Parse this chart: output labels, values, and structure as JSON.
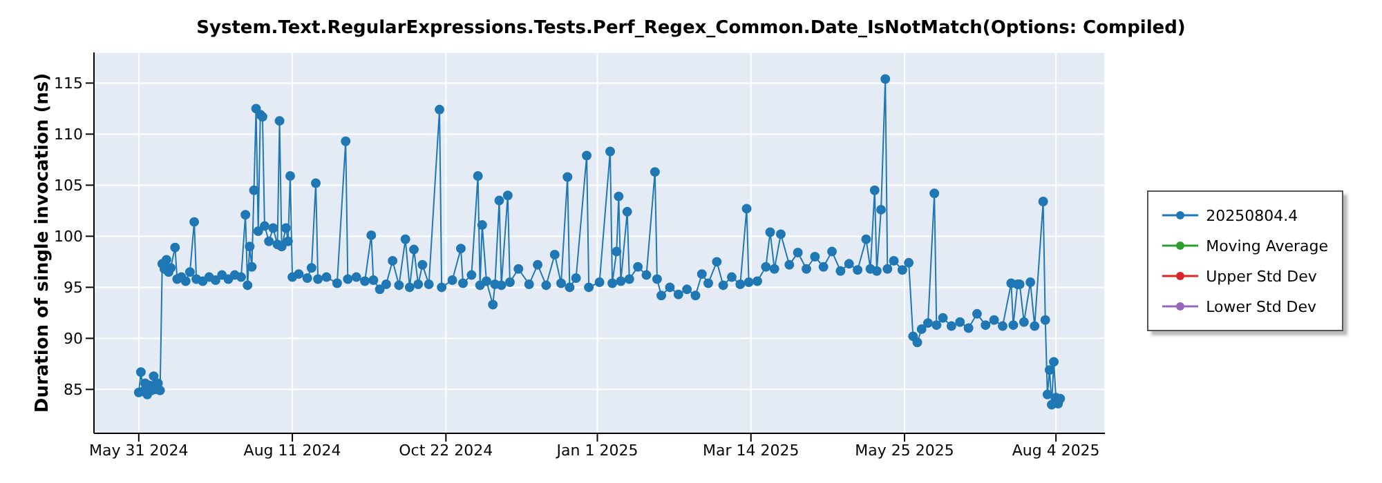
{
  "chart_data": {
    "type": "line",
    "title": "System.Text.RegularExpressions.Tests.Perf_Regex_Common.Date_IsNotMatch(Options: Compiled)",
    "ylabel": "Duration of single invocation (ns)",
    "xlim": [
      "2024-05-10",
      "2025-08-27"
    ],
    "ylim": [
      80.7,
      118
    ],
    "yticks": [
      85,
      90,
      95,
      100,
      105,
      110,
      115
    ],
    "xticks": [
      {
        "value": "2024-05-31",
        "label": "May 31 2024"
      },
      {
        "value": "2024-08-11",
        "label": "Aug 11 2024"
      },
      {
        "value": "2024-10-22",
        "label": "Oct 22 2024"
      },
      {
        "value": "2025-01-01",
        "label": "Jan 1 2025"
      },
      {
        "value": "2025-03-14",
        "label": "Mar 14 2025"
      },
      {
        "value": "2025-05-25",
        "label": "May 25 2025"
      },
      {
        "value": "2025-08-04",
        "label": "Aug 4 2025"
      }
    ],
    "grid": true,
    "legend": "right",
    "marker": "circle",
    "line_style": "solid",
    "series": [
      {
        "name": "20250804.4",
        "color": "#1f77b4",
        "x": [
          "2024-05-31",
          "2024-06-01",
          "2024-06-02",
          "2024-06-03",
          "2024-06-04",
          "2024-06-05",
          "2024-06-06",
          "2024-06-07",
          "2024-06-08",
          "2024-06-09",
          "2024-06-10",
          "2024-06-11",
          "2024-06-12",
          "2024-06-13",
          "2024-06-14",
          "2024-06-15",
          "2024-06-17",
          "2024-06-18",
          "2024-06-20",
          "2024-06-22",
          "2024-06-24",
          "2024-06-26",
          "2024-06-27",
          "2024-06-30",
          "2024-07-03",
          "2024-07-06",
          "2024-07-09",
          "2024-07-12",
          "2024-07-15",
          "2024-07-18",
          "2024-07-20",
          "2024-07-21",
          "2024-07-22",
          "2024-07-23",
          "2024-07-24",
          "2024-07-25",
          "2024-07-26",
          "2024-07-27",
          "2024-07-28",
          "2024-07-29",
          "2024-07-31",
          "2024-08-02",
          "2024-08-04",
          "2024-08-05",
          "2024-08-06",
          "2024-08-08",
          "2024-08-09",
          "2024-08-10",
          "2024-08-11",
          "2024-08-14",
          "2024-08-18",
          "2024-08-20",
          "2024-08-22",
          "2024-08-23",
          "2024-08-27",
          "2024-09-01",
          "2024-09-05",
          "2024-09-06",
          "2024-09-10",
          "2024-09-14",
          "2024-09-17",
          "2024-09-18",
          "2024-09-21",
          "2024-09-24",
          "2024-09-27",
          "2024-09-30",
          "2024-10-03",
          "2024-10-05",
          "2024-10-07",
          "2024-10-09",
          "2024-10-11",
          "2024-10-14",
          "2024-10-19",
          "2024-10-20",
          "2024-10-25",
          "2024-10-29",
          "2024-10-30",
          "2024-11-03",
          "2024-11-06",
          "2024-11-07",
          "2024-11-08",
          "2024-11-10",
          "2024-11-13",
          "2024-11-14",
          "2024-11-16",
          "2024-11-17",
          "2024-11-20",
          "2024-11-21",
          "2024-11-25",
          "2024-11-30",
          "2024-12-04",
          "2024-12-08",
          "2024-12-12",
          "2024-12-15",
          "2024-12-18",
          "2024-12-19",
          "2024-12-22",
          "2024-12-27",
          "2024-12-28",
          "2025-01-02",
          "2025-01-07",
          "2025-01-08",
          "2025-01-10",
          "2025-01-11",
          "2025-01-12",
          "2025-01-15",
          "2025-01-16",
          "2025-01-20",
          "2025-01-24",
          "2025-01-28",
          "2025-01-29",
          "2025-01-31",
          "2025-02-04",
          "2025-02-08",
          "2025-02-12",
          "2025-02-16",
          "2025-02-19",
          "2025-02-22",
          "2025-02-26",
          "2025-03-01",
          "2025-03-05",
          "2025-03-09",
          "2025-03-12",
          "2025-03-13",
          "2025-03-17",
          "2025-03-21",
          "2025-03-23",
          "2025-03-25",
          "2025-03-28",
          "2025-04-01",
          "2025-04-05",
          "2025-04-09",
          "2025-04-13",
          "2025-04-17",
          "2025-04-21",
          "2025-04-25",
          "2025-04-29",
          "2025-05-03",
          "2025-05-07",
          "2025-05-09",
          "2025-05-11",
          "2025-05-12",
          "2025-05-14",
          "2025-05-16",
          "2025-05-17",
          "2025-05-20",
          "2025-05-24",
          "2025-05-27",
          "2025-05-29",
          "2025-05-31",
          "2025-06-02",
          "2025-06-05",
          "2025-06-08",
          "2025-06-09",
          "2025-06-12",
          "2025-06-16",
          "2025-06-20",
          "2025-06-24",
          "2025-06-28",
          "2025-07-02",
          "2025-07-06",
          "2025-07-10",
          "2025-07-14",
          "2025-07-15",
          "2025-07-17",
          "2025-07-18",
          "2025-07-20",
          "2025-07-23",
          "2025-07-25",
          "2025-07-29",
          "2025-07-30",
          "2025-07-31",
          "2025-08-01",
          "2025-08-02",
          "2025-08-03",
          "2025-08-04",
          "2025-08-05",
          "2025-08-06"
        ],
        "values": [
          84.7,
          86.7,
          84.8,
          85.6,
          84.5,
          85.4,
          84.9,
          86.3,
          85.0,
          85.6,
          84.9,
          97.3,
          96.8,
          97.7,
          96.5,
          96.9,
          98.9,
          95.8,
          96.0,
          95.6,
          96.5,
          101.4,
          95.8,
          95.6,
          96.0,
          95.7,
          96.2,
          95.8,
          96.2,
          96.0,
          102.1,
          95.2,
          99.0,
          97.0,
          104.5,
          112.5,
          100.5,
          111.9,
          111.7,
          101.0,
          99.5,
          100.8,
          99.2,
          111.3,
          99.0,
          100.8,
          99.5,
          105.9,
          96.0,
          96.3,
          95.9,
          96.9,
          105.2,
          95.8,
          96.0,
          95.4,
          109.3,
          95.8,
          96.0,
          95.6,
          100.1,
          95.7,
          94.8,
          95.3,
          97.6,
          95.2,
          99.7,
          95.0,
          98.7,
          95.3,
          97.2,
          95.3,
          112.4,
          95.0,
          95.7,
          98.8,
          95.4,
          96.2,
          105.9,
          95.2,
          101.1,
          95.6,
          93.3,
          95.3,
          103.5,
          95.2,
          104.0,
          95.5,
          96.8,
          95.3,
          97.2,
          95.2,
          98.2,
          95.4,
          105.8,
          95.0,
          95.9,
          107.9,
          95.0,
          95.5,
          108.3,
          95.4,
          98.5,
          103.9,
          95.6,
          102.4,
          95.8,
          97.0,
          96.2,
          106.3,
          95.8,
          94.2,
          95.0,
          94.3,
          94.8,
          94.2,
          96.3,
          95.4,
          97.5,
          95.2,
          96.0,
          95.3,
          102.7,
          95.5,
          95.6,
          97.0,
          100.4,
          96.8,
          100.2,
          97.2,
          98.4,
          96.8,
          98.0,
          97.0,
          98.5,
          96.6,
          97.3,
          96.7,
          99.7,
          96.8,
          104.5,
          96.6,
          102.6,
          115.4,
          96.8,
          97.6,
          96.7,
          97.4,
          90.2,
          89.6,
          90.9,
          91.5,
          104.2,
          91.3,
          92.0,
          91.2,
          91.6,
          91.0,
          92.4,
          91.3,
          91.8,
          91.2,
          95.4,
          91.3,
          95.3,
          95.3,
          91.6,
          95.5,
          91.2,
          103.4,
          91.8,
          84.5,
          86.9,
          83.5,
          87.7,
          84.2,
          83.6,
          84.1
        ]
      },
      {
        "name": "Moving Average",
        "color": "#2ca02c"
      },
      {
        "name": "Upper Std Dev",
        "color": "#d62728"
      },
      {
        "name": "Lower Std Dev",
        "color": "#9467bd"
      }
    ]
  }
}
